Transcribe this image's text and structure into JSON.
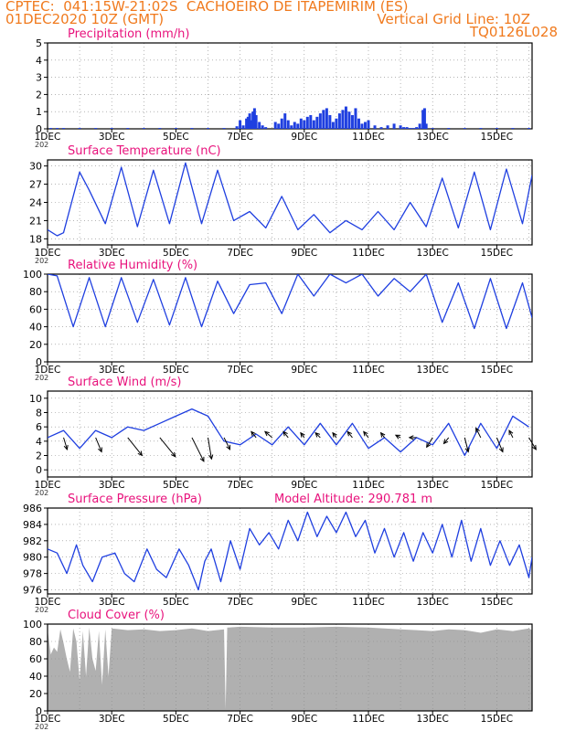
{
  "header": {
    "line1": "CPTEC:  041:15W-21:02S  CACHOEIRO DE ITAPEMIRIM (ES)",
    "line2_left": "01DEC2020 10Z (GMT)",
    "line2_right": "Vertical Grid Line: 10Z",
    "line3_right": "TQ0126L028"
  },
  "colors": {
    "header": "#f07a1e",
    "title": "#e8127c",
    "series": "#1f3fe0",
    "wind_arrow": "#000000",
    "cloud": "#b0b0b0",
    "grid": "#888888"
  },
  "x_axis": {
    "tick_labels": [
      "1DEC",
      "3DEC",
      "5DEC",
      "7DEC",
      "9DEC",
      "11DEC",
      "13DEC",
      "15DEC"
    ],
    "tick_days": [
      0,
      2,
      4,
      6,
      8,
      10,
      12,
      14
    ],
    "domain_days": [
      0,
      15.1
    ],
    "year_fragment": "202"
  },
  "chart_data": [
    {
      "id": "precip",
      "type": "bar",
      "title": "Precipitation (mm/h)",
      "ylim": [
        0,
        5
      ],
      "yticks": [
        0,
        1,
        2,
        3,
        4,
        5
      ],
      "grid": true,
      "x": [
        0.1,
        0.3,
        0.5,
        1.0,
        1.5,
        2.0,
        2.5,
        3.0,
        3.5,
        4.0,
        4.5,
        5.0,
        5.5,
        5.9,
        6.0,
        6.1,
        6.2,
        6.25,
        6.3,
        6.35,
        6.4,
        6.45,
        6.5,
        6.6,
        6.7,
        6.8,
        7.1,
        7.2,
        7.3,
        7.4,
        7.5,
        7.6,
        7.7,
        7.8,
        7.9,
        8.0,
        8.1,
        8.2,
        8.3,
        8.4,
        8.5,
        8.6,
        8.7,
        8.8,
        8.9,
        9.0,
        9.1,
        9.2,
        9.3,
        9.4,
        9.5,
        9.6,
        9.7,
        9.8,
        9.9,
        10.0,
        10.2,
        10.4,
        10.6,
        10.8,
        11.0,
        11.1,
        11.2,
        11.3,
        11.4,
        11.5,
        11.6,
        11.7,
        11.75,
        11.8,
        12.0,
        12.5,
        13.0,
        13.5,
        14.0,
        14.5,
        15.0
      ],
      "values": [
        0.05,
        0.05,
        0.05,
        0.05,
        0.05,
        0.05,
        0.05,
        0.05,
        0.05,
        0.05,
        0.05,
        0.05,
        0.05,
        0.15,
        0.5,
        0.2,
        0.6,
        0.7,
        0.9,
        0.5,
        1.0,
        1.2,
        0.8,
        0.4,
        0.2,
        0.1,
        0.4,
        0.3,
        0.6,
        0.9,
        0.5,
        0.2,
        0.4,
        0.3,
        0.6,
        0.5,
        0.7,
        0.8,
        0.5,
        0.7,
        0.9,
        1.1,
        1.2,
        0.8,
        0.4,
        0.6,
        0.9,
        1.1,
        1.3,
        1.0,
        0.8,
        1.2,
        0.6,
        0.3,
        0.4,
        0.5,
        0.2,
        0.1,
        0.2,
        0.3,
        0.2,
        0.1,
        0.1,
        0.05,
        0.05,
        0.1,
        0.3,
        1.1,
        1.2,
        0.3,
        0.05,
        0.05,
        0.05,
        0.05,
        0.05,
        0.05,
        0.05
      ]
    },
    {
      "id": "temp",
      "type": "line",
      "title": "Surface Temperature (nC)",
      "ylim": [
        17,
        31
      ],
      "yticks": [
        18,
        21,
        24,
        27,
        30
      ],
      "grid": true,
      "x": [
        0.0,
        0.3,
        0.5,
        1.0,
        1.3,
        1.8,
        2.3,
        2.8,
        3.3,
        3.8,
        4.3,
        4.8,
        5.3,
        5.8,
        6.3,
        6.8,
        7.3,
        7.8,
        8.3,
        8.8,
        9.3,
        9.8,
        10.3,
        10.8,
        11.3,
        11.8,
        12.3,
        12.8,
        13.3,
        13.8,
        14.3,
        14.8,
        15.1
      ],
      "values": [
        19.5,
        18.5,
        19.0,
        29.0,
        26.0,
        20.5,
        29.8,
        20.0,
        29.3,
        20.5,
        30.5,
        20.5,
        29.3,
        21.0,
        22.5,
        19.8,
        25.0,
        19.5,
        22.0,
        19.0,
        21.0,
        19.5,
        22.5,
        19.5,
        24.0,
        20.0,
        28.0,
        19.8,
        29.0,
        19.5,
        29.5,
        20.5,
        28.5
      ]
    },
    {
      "id": "rh",
      "type": "line",
      "title": "Relative Humidity (%)",
      "ylim": [
        0,
        100
      ],
      "yticks": [
        0,
        20,
        40,
        60,
        80,
        100
      ],
      "grid": true,
      "x": [
        0.0,
        0.3,
        0.8,
        1.3,
        1.8,
        2.3,
        2.8,
        3.3,
        3.8,
        4.3,
        4.8,
        5.3,
        5.8,
        6.3,
        6.8,
        7.3,
        7.8,
        8.3,
        8.8,
        9.3,
        9.8,
        10.3,
        10.8,
        11.3,
        11.8,
        12.3,
        12.8,
        13.3,
        13.8,
        14.3,
        14.8,
        15.1
      ],
      "values": [
        100,
        98,
        40,
        96,
        40,
        96,
        45,
        94,
        42,
        96,
        40,
        92,
        55,
        88,
        90,
        55,
        100,
        75,
        100,
        90,
        100,
        75,
        95,
        80,
        100,
        45,
        90,
        38,
        95,
        38,
        90,
        50
      ]
    },
    {
      "id": "wind",
      "type": "line",
      "title": "Surface Wind (m/s)",
      "ylim": [
        -1,
        11
      ],
      "yticks": [
        0,
        2,
        4,
        6,
        8,
        10
      ],
      "grid": true,
      "x": [
        0.0,
        0.5,
        1.0,
        1.5,
        2.0,
        2.5,
        3.0,
        3.5,
        4.0,
        4.5,
        5.0,
        5.5,
        6.0,
        6.5,
        7.0,
        7.5,
        8.0,
        8.5,
        9.0,
        9.5,
        10.0,
        10.5,
        11.0,
        11.5,
        12.0,
        12.5,
        13.0,
        13.5,
        14.0,
        14.5,
        15.0
      ],
      "values": [
        4.5,
        5.5,
        3.0,
        5.5,
        4.5,
        6.0,
        5.5,
        6.5,
        7.5,
        8.5,
        7.5,
        4.0,
        3.5,
        5.0,
        3.5,
        6.0,
        3.5,
        6.5,
        3.5,
        6.5,
        3.0,
        4.5,
        2.5,
        4.5,
        3.5,
        6.5,
        2.0,
        6.5,
        3.0,
        7.5,
        6.0
      ],
      "arrows": {
        "x": [
          0.5,
          1.5,
          2.5,
          3.5,
          4.5,
          5.0,
          5.5,
          6.5,
          7.0,
          7.5,
          8.0,
          8.5,
          9.0,
          9.5,
          10.0,
          10.5,
          11.0,
          11.5,
          12.0,
          12.5,
          13.0,
          13.5,
          14.0,
          14.5,
          15.0
        ],
        "u": [
          0.3,
          0.5,
          1.2,
          1.3,
          1.0,
          0.3,
          0.5,
          -0.4,
          -0.6,
          -0.4,
          -0.3,
          -0.4,
          -0.3,
          -0.4,
          -0.4,
          -0.3,
          -0.4,
          -0.6,
          -0.5,
          -0.4,
          0.3,
          -0.4,
          0.5,
          -0.3,
          0.6
        ],
        "v": [
          -1.0,
          -1.2,
          -1.5,
          -1.6,
          -2.0,
          -1.8,
          -1.0,
          0.5,
          0.5,
          0.5,
          0.4,
          0.4,
          0.4,
          0.5,
          0.5,
          0.4,
          0.2,
          0.0,
          -0.8,
          -0.5,
          -1.2,
          0.8,
          -1.2,
          0.6,
          -1.0
        ]
      }
    },
    {
      "id": "pres",
      "type": "line",
      "title": "Surface Pressure (hPa)",
      "ylim": [
        975.5,
        986
      ],
      "yticks": [
        976,
        978,
        980,
        982,
        984,
        986
      ],
      "grid": true,
      "annotation": "Model Altitude: 290.781 m",
      "x": [
        0.0,
        0.3,
        0.6,
        0.9,
        1.1,
        1.4,
        1.7,
        2.1,
        2.4,
        2.7,
        3.1,
        3.4,
        3.7,
        4.1,
        4.4,
        4.7,
        4.9,
        5.1,
        5.4,
        5.7,
        6.0,
        6.3,
        6.6,
        6.9,
        7.2,
        7.5,
        7.8,
        8.1,
        8.4,
        8.7,
        9.0,
        9.3,
        9.6,
        9.9,
        10.2,
        10.5,
        10.8,
        11.1,
        11.4,
        11.7,
        12.0,
        12.3,
        12.6,
        12.9,
        13.2,
        13.5,
        13.8,
        14.1,
        14.4,
        14.7,
        15.0,
        15.1
      ],
      "values": [
        981.0,
        980.5,
        978.0,
        981.5,
        979.0,
        977.0,
        980.0,
        980.5,
        978.0,
        977.0,
        981.0,
        978.5,
        977.5,
        981.0,
        979.0,
        976.0,
        979.5,
        981.0,
        977.0,
        982.0,
        978.5,
        983.5,
        981.5,
        983.0,
        981.0,
        984.5,
        982.0,
        985.5,
        982.5,
        985.0,
        983.0,
        985.5,
        982.5,
        984.5,
        980.5,
        983.5,
        980.0,
        983.0,
        979.5,
        983.0,
        980.5,
        984.0,
        980.0,
        984.5,
        979.5,
        983.5,
        979.0,
        982.0,
        979.0,
        981.5,
        977.5,
        980.0
      ]
    },
    {
      "id": "cloud",
      "type": "area",
      "title": "Cloud Cover (%)",
      "ylim": [
        0,
        100
      ],
      "yticks": [
        0,
        20,
        40,
        60,
        80,
        100
      ],
      "grid": true,
      "x": [
        0.0,
        0.1,
        0.2,
        0.3,
        0.4,
        0.5,
        0.6,
        0.7,
        0.8,
        0.9,
        1.0,
        1.1,
        1.2,
        1.3,
        1.4,
        1.5,
        1.6,
        1.7,
        1.8,
        1.9,
        2.0,
        2.5,
        3.0,
        3.5,
        4.0,
        4.5,
        5.0,
        5.5,
        5.55,
        5.6,
        5.65,
        6.0,
        7.0,
        8.0,
        9.0,
        10.0,
        11.0,
        11.5,
        12.0,
        12.5,
        13.0,
        13.5,
        14.0,
        14.5,
        15.0,
        15.1
      ],
      "values": [
        94,
        65,
        73,
        68,
        94,
        78,
        60,
        45,
        95,
        80,
        35,
        92,
        40,
        96,
        60,
        46,
        92,
        30,
        94,
        40,
        95,
        93,
        94,
        92,
        93,
        95,
        92,
        94,
        2,
        96,
        96,
        97,
        96,
        96,
        97,
        96,
        94,
        93,
        92,
        94,
        93,
        90,
        94,
        92,
        95,
        93
      ]
    }
  ]
}
